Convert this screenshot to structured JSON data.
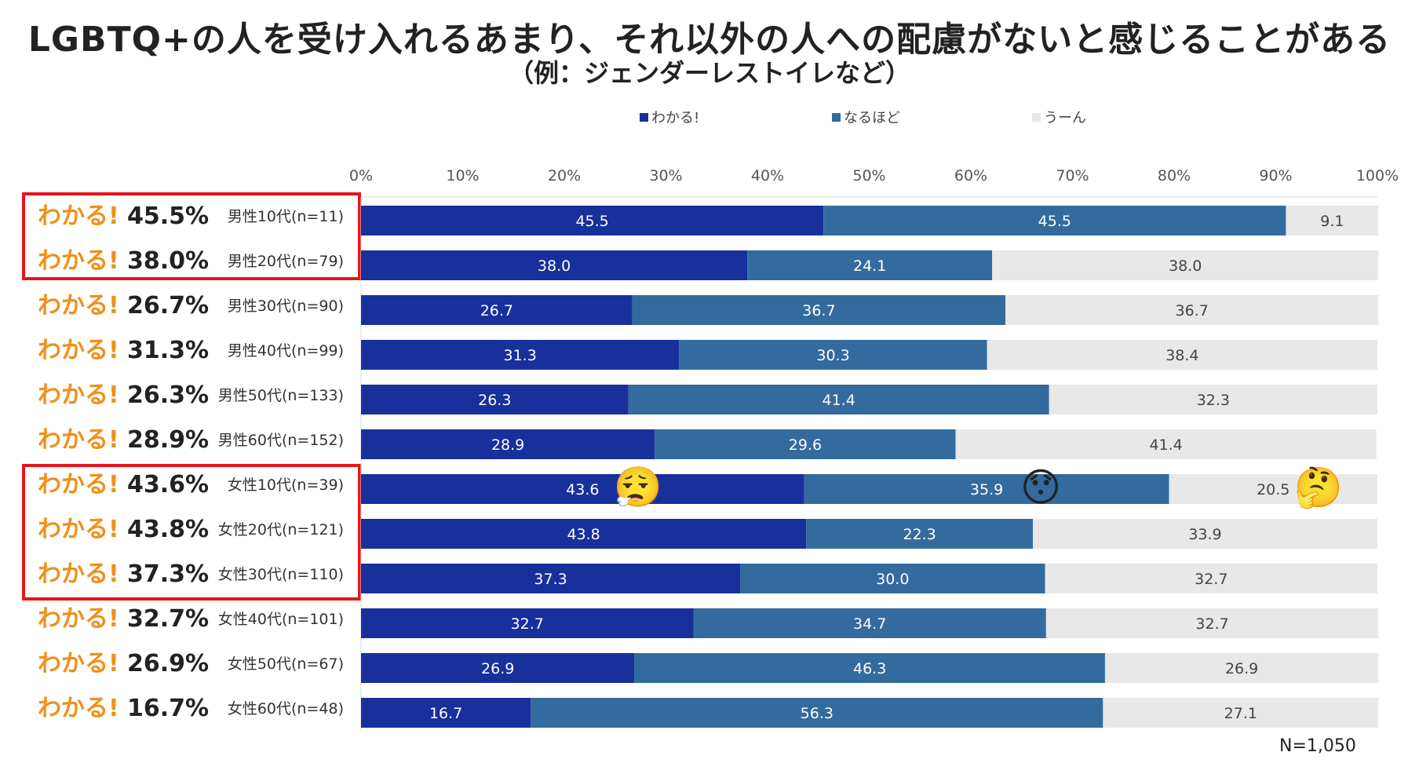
{
  "title": "LGBTQ+の人を受け入れるあまり、それ以外の人への配慮がないと感じることがある",
  "subtitle": "（例：ジェンダーレストイレなど）",
  "wakaru_prefix": "わかる!",
  "total_note": "N=1,050",
  "colors": {
    "wakaru": "#18309c",
    "naruhodo": "#336b9e",
    "uun": "#e8e8e8",
    "accent": "#f0901a",
    "highlight": "#e8141c"
  },
  "emojis": [
    {
      "name": "face-exhaling-icon",
      "glyph": "😮‍💨"
    },
    {
      "name": "hushed-face-icon",
      "glyph": "😯"
    },
    {
      "name": "thinking-face-icon",
      "glyph": "🤔"
    }
  ],
  "chart_data": {
    "type": "bar",
    "orientation": "horizontal",
    "stacked": true,
    "xlim": [
      0,
      100
    ],
    "xticks": [
      "0%",
      "10%",
      "20%",
      "30%",
      "40%",
      "50%",
      "60%",
      "70%",
      "80%",
      "90%",
      "100%"
    ],
    "legend": {
      "position": "top",
      "entries": [
        "わかる!",
        "なるほど",
        "うーん"
      ]
    },
    "categories": [
      "男性10代(n=11)",
      "男性20代(n=79)",
      "男性30代(n=90)",
      "男性40代(n=99)",
      "男性50代(n=133)",
      "男性60代(n=152)",
      "女性10代(n=39)",
      "女性20代(n=121)",
      "女性30代(n=110)",
      "女性40代(n=101)",
      "女性50代(n=67)",
      "女性60代(n=48)"
    ],
    "highlighted_groups": [
      [
        0,
        1
      ],
      [
        6,
        8
      ]
    ],
    "series": [
      {
        "name": "わかる!",
        "values": [
          45.5,
          38.0,
          26.7,
          31.3,
          26.3,
          28.9,
          43.6,
          43.8,
          37.3,
          32.7,
          26.9,
          16.7
        ]
      },
      {
        "name": "なるほど",
        "values": [
          45.5,
          24.1,
          36.7,
          30.3,
          41.4,
          29.6,
          35.9,
          22.3,
          30.0,
          34.7,
          46.3,
          56.3
        ]
      },
      {
        "name": "うーん",
        "values": [
          9.1,
          38.0,
          36.7,
          38.4,
          32.3,
          41.4,
          20.5,
          33.9,
          32.7,
          32.7,
          26.9,
          27.1
        ]
      }
    ],
    "row_labels": [
      {
        "pct": "45.5%",
        "group": "男性10代(n=11)"
      },
      {
        "pct": "38.0%",
        "group": "男性20代(n=79)"
      },
      {
        "pct": "26.7%",
        "group": "男性30代(n=90)"
      },
      {
        "pct": "31.3%",
        "group": "男性40代(n=99)"
      },
      {
        "pct": "26.3%",
        "group": "男性50代(n=133)"
      },
      {
        "pct": "28.9%",
        "group": "男性60代(n=152)"
      },
      {
        "pct": "43.6%",
        "group": "女性10代(n=39)"
      },
      {
        "pct": "43.8%",
        "group": "女性20代(n=121)"
      },
      {
        "pct": "37.3%",
        "group": "女性30代(n=110)"
      },
      {
        "pct": "32.7%",
        "group": "女性40代(n=101)"
      },
      {
        "pct": "26.9%",
        "group": "女性50代(n=67)"
      },
      {
        "pct": "16.7%",
        "group": "女性60代(n=48)"
      }
    ]
  }
}
